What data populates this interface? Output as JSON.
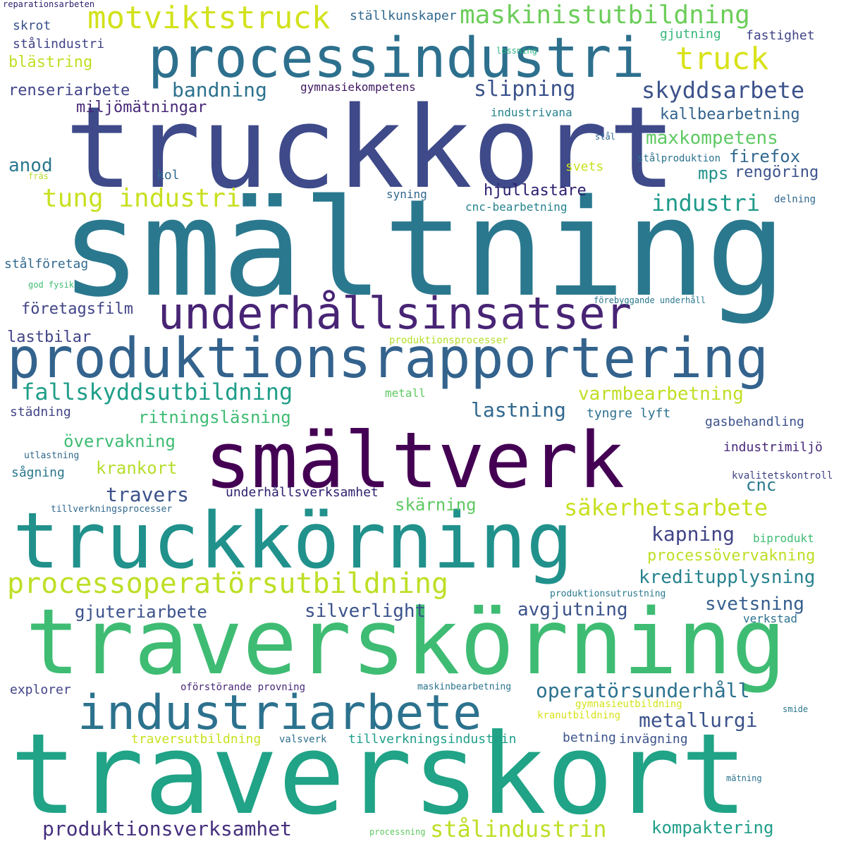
{
  "words": [
    {
      "text": "smältning",
      "color": "#2a788e"
    },
    {
      "text": "truckkort",
      "color": "#3e4a89"
    },
    {
      "text": "traverskort",
      "color": "#20a386"
    },
    {
      "text": "traverskörning",
      "color": "#3fbc73"
    },
    {
      "text": "smältverk",
      "color": "#440154"
    },
    {
      "text": "truckkörning",
      "color": "#21918c"
    },
    {
      "text": "produktionsrapportering",
      "color": "#33638d"
    },
    {
      "text": "processindustri",
      "color": "#2d708e"
    },
    {
      "text": "industriarbete",
      "color": "#2c728e"
    },
    {
      "text": "underhållsinsatser",
      "color": "#482475"
    },
    {
      "text": "processoperatörsutbildning",
      "color": "#bddf26"
    },
    {
      "text": "motviktstruck",
      "color": "#d2e21b"
    },
    {
      "text": "maskinistutbildning",
      "color": "#6ccd5a"
    },
    {
      "text": "fallskyddsutbildning",
      "color": "#1f9e89"
    },
    {
      "text": "tung industri",
      "color": "#c8e020"
    },
    {
      "text": "truck",
      "color": "#d8e219"
    },
    {
      "text": "skyddsarbete",
      "color": "#3b528b"
    },
    {
      "text": "säkerhetsarbete",
      "color": "#c8e020"
    },
    {
      "text": "operatörsunderhåll",
      "color": "#2c728e"
    },
    {
      "text": "produktionsverksamhet",
      "color": "#46307e"
    },
    {
      "text": "stålindustrin",
      "color": "#bddf26"
    },
    {
      "text": "industri",
      "color": "#1f9a8a"
    },
    {
      "text": "slipning",
      "color": "#3b528b"
    },
    {
      "text": "varmbearbetning",
      "color": "#c0df25"
    },
    {
      "text": "kreditupplysning",
      "color": "#26828e"
    },
    {
      "text": "maxkompetens",
      "color": "#5ec962"
    },
    {
      "text": "kallbearbetning",
      "color": "#33638d"
    },
    {
      "text": "metallurgi",
      "color": "#3b528b"
    },
    {
      "text": "travers",
      "color": "#3b528b"
    },
    {
      "text": "bandning",
      "color": "#2c728e"
    },
    {
      "text": "kapning",
      "color": "#414487"
    },
    {
      "text": "svetsning",
      "color": "#355f8d"
    },
    {
      "text": "lastning",
      "color": "#31688e"
    },
    {
      "text": "silverlight",
      "color": "#3b528b"
    },
    {
      "text": "avgjutning",
      "color": "#3b528b"
    },
    {
      "text": "gjuteriarbete",
      "color": "#3b528b"
    },
    {
      "text": "ritningsläsning",
      "color": "#3fbc73"
    },
    {
      "text": "övervakning",
      "color": "#3fbc73"
    },
    {
      "text": "krankort",
      "color": "#b5de2b"
    },
    {
      "text": "skärning",
      "color": "#5ec962"
    },
    {
      "text": "processövervakning",
      "color": "#bddf26"
    },
    {
      "text": "kompaktering",
      "color": "#1f9e89"
    },
    {
      "text": "firefox",
      "color": "#31688e"
    },
    {
      "text": "mps",
      "color": "#21918c"
    },
    {
      "text": "rengöring",
      "color": "#3b528b"
    },
    {
      "text": "cnc",
      "color": "#2a788e"
    },
    {
      "text": "hjullastare",
      "color": "#2d1e6e"
    },
    {
      "text": "anod",
      "color": "#2a788e"
    },
    {
      "text": "lastbilar",
      "color": "#414487"
    },
    {
      "text": "företagsfilm",
      "color": "#414487"
    },
    {
      "text": "miljömätningar",
      "color": "#482878"
    },
    {
      "text": "renseriarbete",
      "color": "#414487"
    },
    {
      "text": "blästring",
      "color": "#c0df25"
    },
    {
      "text": "stålindustri",
      "color": "#414487"
    },
    {
      "text": "skrot",
      "color": "#3b528b"
    },
    {
      "text": "reparationsarbeten",
      "color": "#2d1e6e"
    },
    {
      "text": "ställkunskaper",
      "color": "#31688e"
    },
    {
      "text": "gjutning",
      "color": "#35b779"
    },
    {
      "text": "fastighet",
      "color": "#414487"
    },
    {
      "text": "lossning",
      "color": "#29af7f"
    },
    {
      "text": "gymnasiekompetens",
      "color": "#3e1760"
    },
    {
      "text": "industrivana",
      "color": "#26828e"
    },
    {
      "text": "stål",
      "color": "#31688e"
    },
    {
      "text": "stålproduktion",
      "color": "#2c728e"
    },
    {
      "text": "svets",
      "color": "#c8e020"
    },
    {
      "text": "kol",
      "color": "#31688e"
    },
    {
      "text": "fräs",
      "color": "#b5de2b"
    },
    {
      "text": "syning",
      "color": "#31688e"
    },
    {
      "text": "cnc-bearbetning",
      "color": "#26828e"
    },
    {
      "text": "delning",
      "color": "#31688e"
    },
    {
      "text": "stålföretag",
      "color": "#31688e"
    },
    {
      "text": "god fysik",
      "color": "#3fbc73"
    },
    {
      "text": "förebyggande underhåll",
      "color": "#2a788e"
    },
    {
      "text": "produktionsprocesser",
      "color": "#b5de2b"
    },
    {
      "text": "metall",
      "color": "#5ec962"
    },
    {
      "text": "städning",
      "color": "#414487"
    },
    {
      "text": "tyngre lyft",
      "color": "#2d708e"
    },
    {
      "text": "gasbehandling",
      "color": "#3b528b"
    },
    {
      "text": "industrimiljö",
      "color": "#482878"
    },
    {
      "text": "utlastning",
      "color": "#31688e"
    },
    {
      "text": "sågning",
      "color": "#2a788e"
    },
    {
      "text": "kvalitetskontroll",
      "color": "#414487"
    },
    {
      "text": "underhållsverksamhet",
      "color": "#2d1e6e"
    },
    {
      "text": "tillverkningsprocesser",
      "color": "#31688e"
    },
    {
      "text": "biprodukt",
      "color": "#3fbc73"
    },
    {
      "text": "produktionsutrustning",
      "color": "#2a788e"
    },
    {
      "text": "verkstad",
      "color": "#2c728e"
    },
    {
      "text": "explorer",
      "color": "#414487"
    },
    {
      "text": "oförstörande provning",
      "color": "#482878"
    },
    {
      "text": "maskinbearbetning",
      "color": "#2c728e"
    },
    {
      "text": "gymnasieutbildning",
      "color": "#d2e21b"
    },
    {
      "text": "kranutbildning",
      "color": "#d8e219"
    },
    {
      "text": "smide",
      "color": "#2a788e"
    },
    {
      "text": "traversutbildning",
      "color": "#c8e020"
    },
    {
      "text": "valsverk",
      "color": "#2d708e"
    },
    {
      "text": "tillverkningsindustrin",
      "color": "#1f9e89"
    },
    {
      "text": "betning",
      "color": "#3b528b"
    },
    {
      "text": "invägning",
      "color": "#3b528b"
    },
    {
      "text": "mätning",
      "color": "#2c728e"
    },
    {
      "text": "processning",
      "color": "#5ec962"
    }
  ]
}
